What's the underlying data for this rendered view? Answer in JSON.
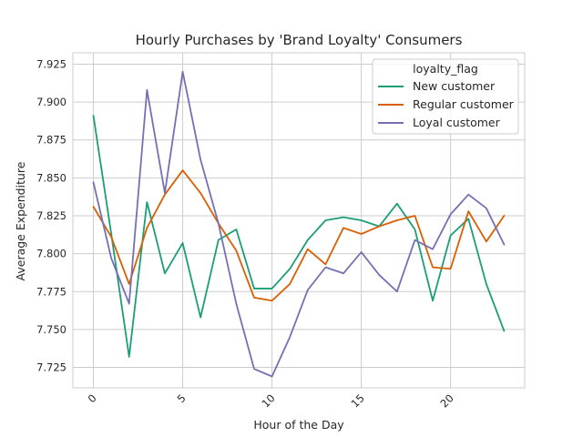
{
  "chart_data": {
    "type": "line",
    "title": "Hourly Purchases by 'Brand Loyalty' Consumers",
    "xlabel": "Hour of the Day",
    "ylabel": "Average Expenditure",
    "xlim": [
      -1.15,
      24.15
    ],
    "ylim": [
      7.7115,
      7.9325
    ],
    "x_ticks": [
      0,
      5,
      10,
      15,
      20
    ],
    "y_ticks": [
      7.725,
      7.75,
      7.775,
      7.8,
      7.825,
      7.85,
      7.875,
      7.9,
      7.925
    ],
    "y_tick_labels": [
      "7.725",
      "7.750",
      "7.775",
      "7.800",
      "7.825",
      "7.850",
      "7.875",
      "7.900",
      "7.925"
    ],
    "grid": true,
    "legend": {
      "title": "loyalty_flag",
      "position": "upper-right"
    },
    "x": [
      0,
      1,
      2,
      3,
      4,
      5,
      6,
      7,
      8,
      9,
      10,
      11,
      12,
      13,
      14,
      15,
      16,
      17,
      18,
      19,
      20,
      21,
      22,
      23
    ],
    "series": [
      {
        "name": "New customer",
        "color": "#1b9e77",
        "values": [
          7.891,
          7.813,
          7.732,
          7.834,
          7.787,
          7.807,
          7.758,
          7.809,
          7.816,
          7.777,
          7.777,
          7.79,
          7.809,
          7.822,
          7.824,
          7.822,
          7.818,
          7.833,
          7.816,
          7.769,
          7.812,
          7.823,
          7.78,
          7.749
        ]
      },
      {
        "name": "Regular customer",
        "color": "#d95f02",
        "values": [
          7.831,
          7.811,
          7.78,
          7.817,
          7.839,
          7.855,
          7.84,
          7.82,
          7.802,
          7.771,
          7.769,
          7.78,
          7.803,
          7.793,
          7.817,
          7.813,
          7.818,
          7.822,
          7.825,
          7.791,
          7.79,
          7.828,
          7.808,
          7.825
        ]
      },
      {
        "name": "Loyal customer",
        "color": "#7570b3",
        "values": [
          7.847,
          7.797,
          7.767,
          7.908,
          7.84,
          7.92,
          7.862,
          7.82,
          7.767,
          7.724,
          7.719,
          7.745,
          7.776,
          7.791,
          7.787,
          7.801,
          7.786,
          7.775,
          7.809,
          7.803,
          7.826,
          7.839,
          7.83,
          7.806
        ]
      }
    ]
  }
}
